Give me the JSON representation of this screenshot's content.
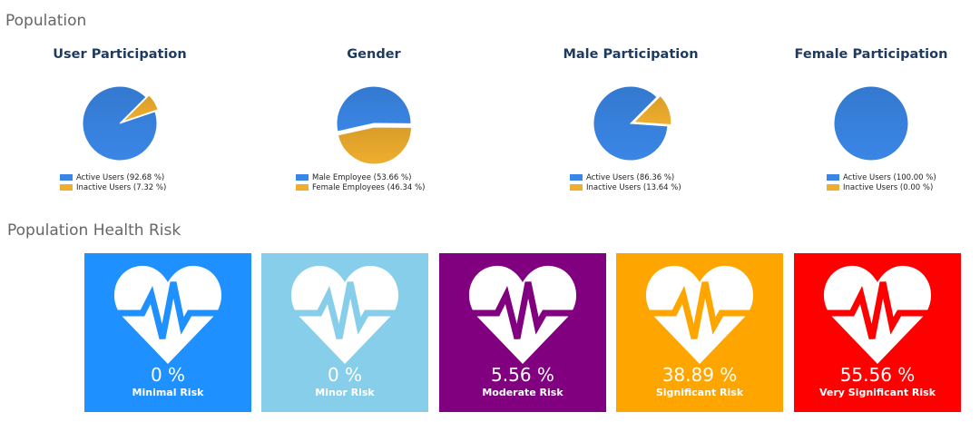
{
  "population": {
    "title": "Population",
    "charts": [
      {
        "title": "User Participation",
        "legend": [
          "Active Users (92.68 %)",
          "Inactive Users (7.32 %)"
        ]
      },
      {
        "title": "Gender",
        "legend": [
          "Male Employee (53.66 %)",
          "Female Employees (46.34 %)"
        ]
      },
      {
        "title": "Male Participation",
        "legend": [
          "Active Users (86.36 %)",
          "Inactive Users (13.64 %)"
        ]
      },
      {
        "title": "Female Participation",
        "legend": [
          "Active Users (100.00 %)",
          "Inactive Users (0.00 %)"
        ]
      }
    ]
  },
  "health_risk": {
    "title": "Population Health Risk",
    "cards": [
      {
        "value": "0 %",
        "label": "Minimal Risk",
        "color": "#1e90ff"
      },
      {
        "value": "0 %",
        "label": "Minor Risk",
        "color": "#87ceeb"
      },
      {
        "value": "5.56 %",
        "label": "Moderate Risk",
        "color": "#800080"
      },
      {
        "value": "38.89 %",
        "label": "Significant Risk",
        "color": "#ffa500"
      },
      {
        "value": "55.56 %",
        "label": "Very Significant Risk",
        "color": "#ff0000"
      }
    ]
  },
  "colors": {
    "series_primary": "#3a86e6",
    "series_secondary": "#f0ae2e"
  },
  "chart_data": [
    {
      "type": "pie",
      "title": "User Participation",
      "categories": [
        "Active Users",
        "Inactive Users"
      ],
      "values": [
        92.68,
        7.32
      ]
    },
    {
      "type": "pie",
      "title": "Gender",
      "categories": [
        "Male Employee",
        "Female Employees"
      ],
      "values": [
        53.66,
        46.34
      ]
    },
    {
      "type": "pie",
      "title": "Male Participation",
      "categories": [
        "Active Users",
        "Inactive Users"
      ],
      "values": [
        86.36,
        13.64
      ]
    },
    {
      "type": "pie",
      "title": "Female Participation",
      "categories": [
        "Active Users",
        "Inactive Users"
      ],
      "values": [
        100.0,
        0.0
      ]
    }
  ]
}
